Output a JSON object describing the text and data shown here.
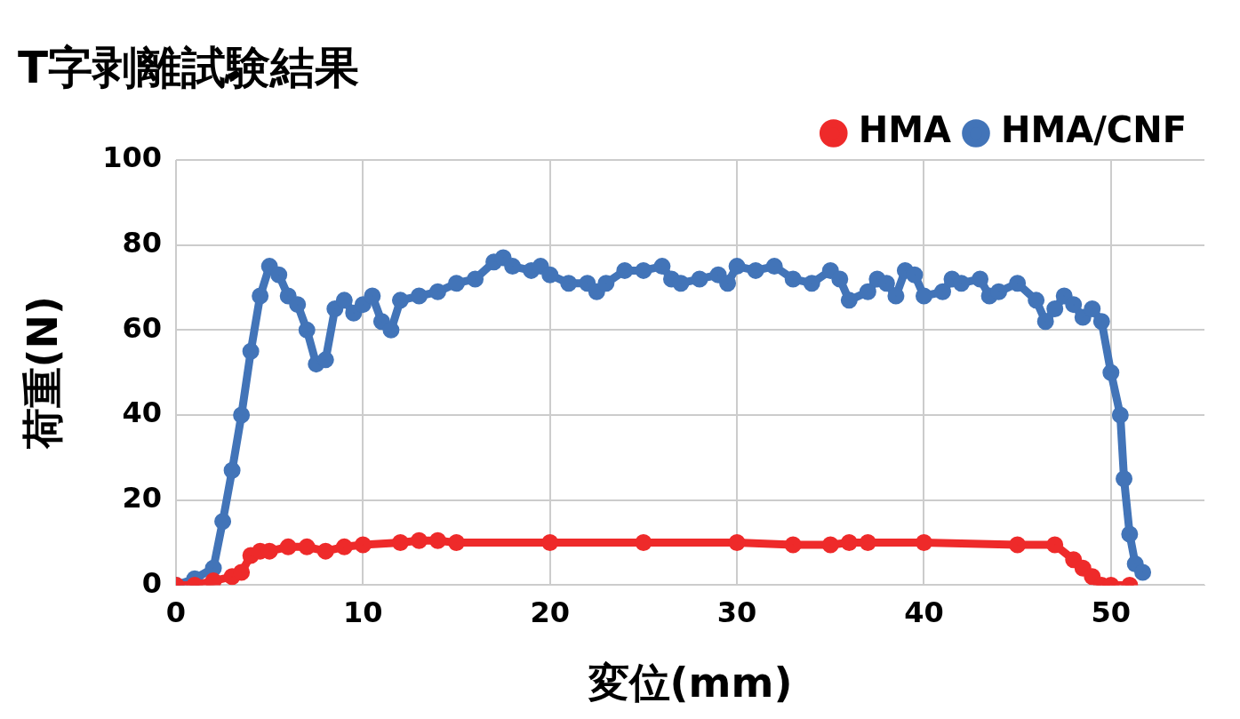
{
  "chart_data": {
    "type": "line",
    "title": "T字剥離試験結果",
    "xlabel": "変位(mm)",
    "ylabel": "荷重(N)",
    "xlim": [
      0,
      55
    ],
    "xticks": [
      0,
      10,
      20,
      30,
      40,
      50
    ],
    "ylim": [
      0,
      100
    ],
    "yticks": [
      0,
      20,
      40,
      60,
      80,
      100
    ],
    "grid": true,
    "legend": "top right",
    "marker": "circle",
    "line_style": "solid",
    "series": [
      {
        "name": "HMA",
        "color": "#ee2a2a",
        "x": [
          0,
          1,
          2,
          3,
          3.5,
          4,
          4.5,
          5,
          6,
          7,
          8,
          9,
          10,
          12,
          13,
          14,
          15,
          20,
          25,
          30,
          33,
          35,
          36,
          37,
          40,
          45,
          47,
          48,
          48.5,
          49,
          49.5,
          50,
          51
        ],
        "values": [
          0,
          0,
          1,
          2,
          3,
          7,
          8,
          8,
          9,
          9,
          8,
          9,
          9.5,
          10,
          10.5,
          10.5,
          10,
          10,
          10,
          10,
          9.5,
          9.5,
          10,
          10,
          10,
          9.5,
          9.5,
          6,
          4,
          2,
          0,
          0,
          0
        ]
      },
      {
        "name": "HMA/CNF",
        "color": "#4274b8",
        "x": [
          0,
          1,
          2,
          2.5,
          3,
          3.5,
          4,
          4.5,
          5,
          5.5,
          6,
          6.5,
          7,
          7.5,
          8,
          8.5,
          9,
          9.5,
          10,
          10.5,
          11,
          11.5,
          12,
          13,
          14,
          15,
          16,
          17,
          17.5,
          18,
          19,
          19.5,
          20,
          21,
          22,
          22.5,
          23,
          24,
          25,
          26,
          26.5,
          27,
          28,
          29,
          29.5,
          30,
          31,
          32,
          33,
          34,
          35,
          35.5,
          36,
          37,
          37.5,
          38,
          38.5,
          39,
          39.5,
          40,
          41,
          41.5,
          42,
          43,
          43.5,
          44,
          45,
          46,
          46.5,
          47,
          47.5,
          48,
          48.5,
          49,
          49.5,
          50,
          50.5,
          50.7,
          51,
          51.3,
          51.7
        ],
        "values": [
          0,
          1.5,
          4,
          15,
          27,
          40,
          55,
          68,
          75,
          73,
          68,
          66,
          60,
          52,
          53,
          65,
          67,
          64,
          66,
          68,
          62,
          60,
          67,
          68,
          69,
          71,
          72,
          76,
          77,
          75,
          74,
          75,
          73,
          71,
          71,
          69,
          71,
          74,
          74,
          75,
          72,
          71,
          72,
          73,
          71,
          75,
          74,
          75,
          72,
          71,
          74,
          72,
          67,
          69,
          72,
          71,
          68,
          74,
          73,
          68,
          69,
          72,
          71,
          72,
          68,
          69,
          71,
          67,
          62,
          65,
          68,
          66,
          63,
          65,
          62,
          50,
          40,
          25,
          12,
          5,
          3
        ]
      }
    ]
  }
}
